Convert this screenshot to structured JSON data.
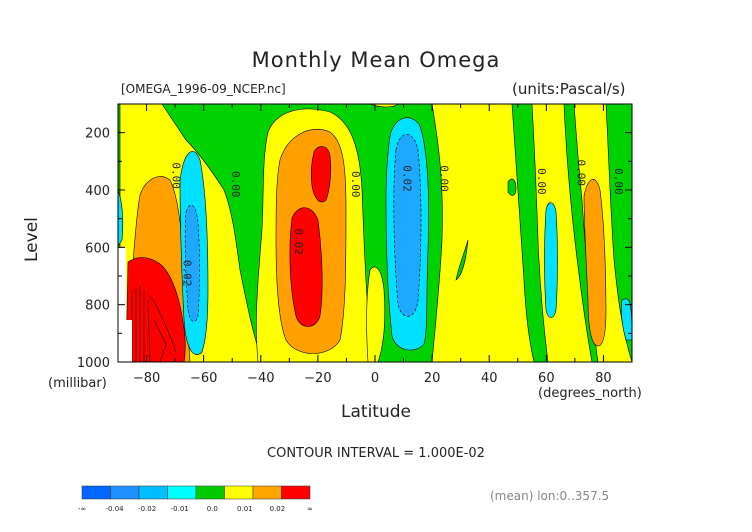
{
  "chart_data": {
    "type": "contour",
    "title": "Monthly Mean Omega",
    "source_file": "[OMEGA_1996-09_NCEP.nc]",
    "units": "(units:Pascal/s)",
    "xlabel": "Latitude",
    "x_units": "(degrees_north)",
    "ylabel": "Level",
    "y_units": "(millibar)",
    "xlim": [
      -90,
      90
    ],
    "ylim": [
      1000,
      100
    ],
    "x_ticks": [
      -80,
      -60,
      -40,
      -20,
      0,
      20,
      40,
      60,
      80
    ],
    "y_ticks": [
      200,
      400,
      600,
      800,
      1000
    ],
    "contour_interval_text": "CONTOUR INTERVAL = 1.000E-02",
    "mean_info": "(mean) lon:0..357.5",
    "contour_labels": [
      {
        "text": "0.00",
        "lat": -71,
        "level": 350
      },
      {
        "text": "0.02",
        "lat": -67,
        "level": 690
      },
      {
        "text": "0.00",
        "lat": -50,
        "level": 380
      },
      {
        "text": "0.02",
        "lat": -28,
        "level": 580
      },
      {
        "text": "0.00",
        "lat": -8,
        "level": 380
      },
      {
        "text": "0.02",
        "lat": 10,
        "level": 360
      },
      {
        "text": "0.00",
        "lat": 23,
        "level": 360
      },
      {
        "text": "0.00",
        "lat": 57,
        "level": 370
      },
      {
        "text": "0.00",
        "lat": 71,
        "level": 340
      },
      {
        "text": "0.00",
        "lat": 84,
        "level": 370
      }
    ],
    "colorbar": {
      "labels": [
        "-∞",
        "-0.04",
        "-0.02",
        "-0.01",
        "0.0",
        "0.01",
        "0.02",
        "∞"
      ],
      "colors": [
        "#0066ff",
        "#1e90ff",
        "#00bfff",
        "#00ffff",
        "#00cc00",
        "#ffff00",
        "#ffa500",
        "#ff0000"
      ]
    },
    "fill_colors": {
      "green": "#00d200",
      "yellow": "#ffff00",
      "orange": "#ffa000",
      "red": "#ff0000",
      "cyan": "#00e0ff",
      "lightblue": "#1ea8ff",
      "darkred": "#8a0000"
    }
  }
}
